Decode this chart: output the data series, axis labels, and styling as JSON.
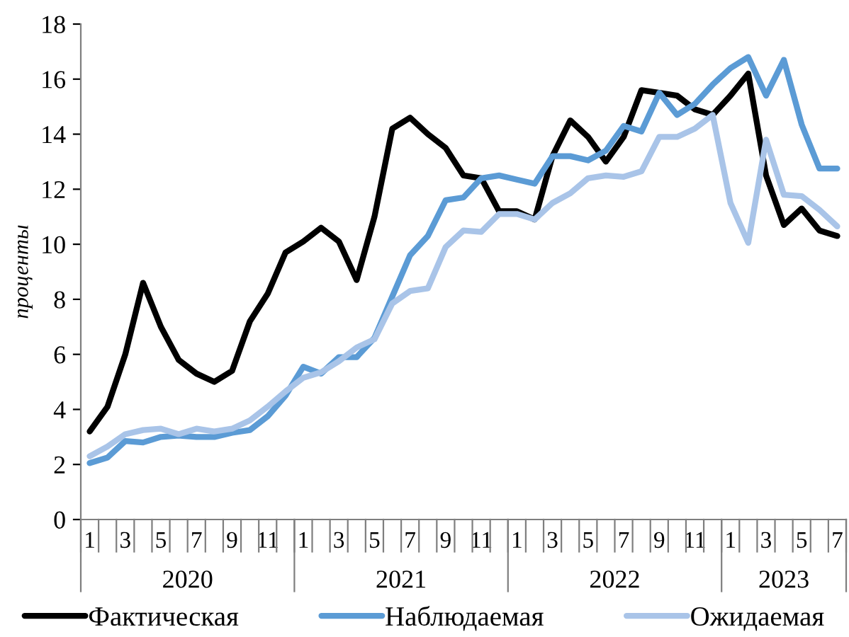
{
  "chart_data": {
    "type": "line",
    "ylabel": "проценты",
    "categories": [
      "1",
      null,
      "3",
      null,
      "5",
      null,
      "7",
      null,
      "9",
      null,
      "11",
      null,
      "1",
      null,
      "3",
      null,
      "5",
      null,
      "7",
      null,
      "9",
      null,
      "11",
      null,
      "1",
      null,
      "3",
      null,
      "5",
      null,
      "7",
      null,
      "9",
      null,
      "11",
      null,
      "1",
      null,
      "3",
      null,
      "5",
      null,
      "7"
    ],
    "series": [
      {
        "name": "Фактическая",
        "color": "#000000",
        "values": [
          3.2,
          4.1,
          6.0,
          8.6,
          7.0,
          5.8,
          5.3,
          5.0,
          5.4,
          7.2,
          8.2,
          9.7,
          10.1,
          10.6,
          10.1,
          8.7,
          11.0,
          14.2,
          14.6,
          14.0,
          13.5,
          12.5,
          12.4,
          11.2,
          11.2,
          10.9,
          13.2,
          14.5,
          13.9,
          13.0,
          13.9,
          15.6,
          15.5,
          15.4,
          14.9,
          14.7,
          15.4,
          16.2,
          12.5,
          10.7,
          11.3,
          10.5,
          10.3
        ]
      },
      {
        "name": "Наблюдаемая",
        "color": "#5b9bd5",
        "values": [
          2.05,
          2.25,
          2.85,
          2.8,
          3.0,
          3.05,
          3.0,
          3.0,
          3.15,
          3.25,
          3.75,
          4.5,
          5.55,
          5.3,
          5.9,
          5.9,
          6.6,
          8.1,
          9.6,
          10.3,
          11.6,
          11.7,
          12.4,
          12.5,
          12.35,
          12.2,
          13.2,
          13.2,
          13.05,
          13.4,
          14.3,
          14.1,
          15.5,
          14.7,
          15.1,
          15.8,
          16.4,
          16.8,
          15.4,
          16.7,
          14.35,
          12.75,
          12.75
        ]
      },
      {
        "name": "Ожидаемая",
        "color": "#a9c4e8",
        "values": [
          2.3,
          2.65,
          3.1,
          3.25,
          3.3,
          3.1,
          3.3,
          3.2,
          3.3,
          3.6,
          4.1,
          4.65,
          5.15,
          5.35,
          5.75,
          6.25,
          6.55,
          7.85,
          8.3,
          8.4,
          9.9,
          10.5,
          10.45,
          11.1,
          11.1,
          10.9,
          11.5,
          11.85,
          12.4,
          12.5,
          12.45,
          12.65,
          13.9,
          13.9,
          14.2,
          14.7,
          11.5,
          10.05,
          13.8,
          11.8,
          11.75,
          11.25,
          10.65
        ]
      }
    ],
    "annotations": [
      "2020",
      "2021",
      "2022",
      "2023"
    ],
    "ylim": [
      0,
      18
    ],
    "yticks": [
      0,
      2,
      4,
      6,
      8,
      10,
      12,
      14,
      16,
      18
    ],
    "grid": false,
    "legend": "bottom",
    "marker": "none",
    "line_style": "solid"
  }
}
